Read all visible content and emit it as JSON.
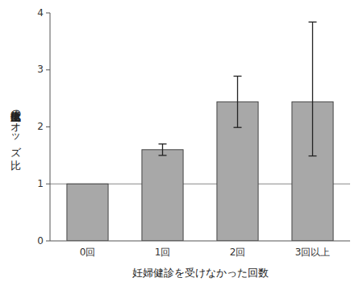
{
  "chart_data": {
    "type": "bar",
    "categories": [
      "0回",
      "1回",
      "2回",
      "3回以上"
    ],
    "values": [
      1.0,
      1.6,
      2.44,
      2.44
    ],
    "error_lower": [
      null,
      0.1,
      0.45,
      0.95
    ],
    "error_upper": [
      null,
      0.1,
      0.45,
      1.4
    ],
    "color": "#a8a8a8",
    "reference_line": 1.0,
    "xlabel": "妊婦健診を受けなかった回数",
    "ylabel": "低出生体重児出生のオッズ比",
    "ylim": [
      0,
      4
    ],
    "yticks": [
      0,
      1,
      2,
      3,
      4
    ],
    "grid": false
  }
}
